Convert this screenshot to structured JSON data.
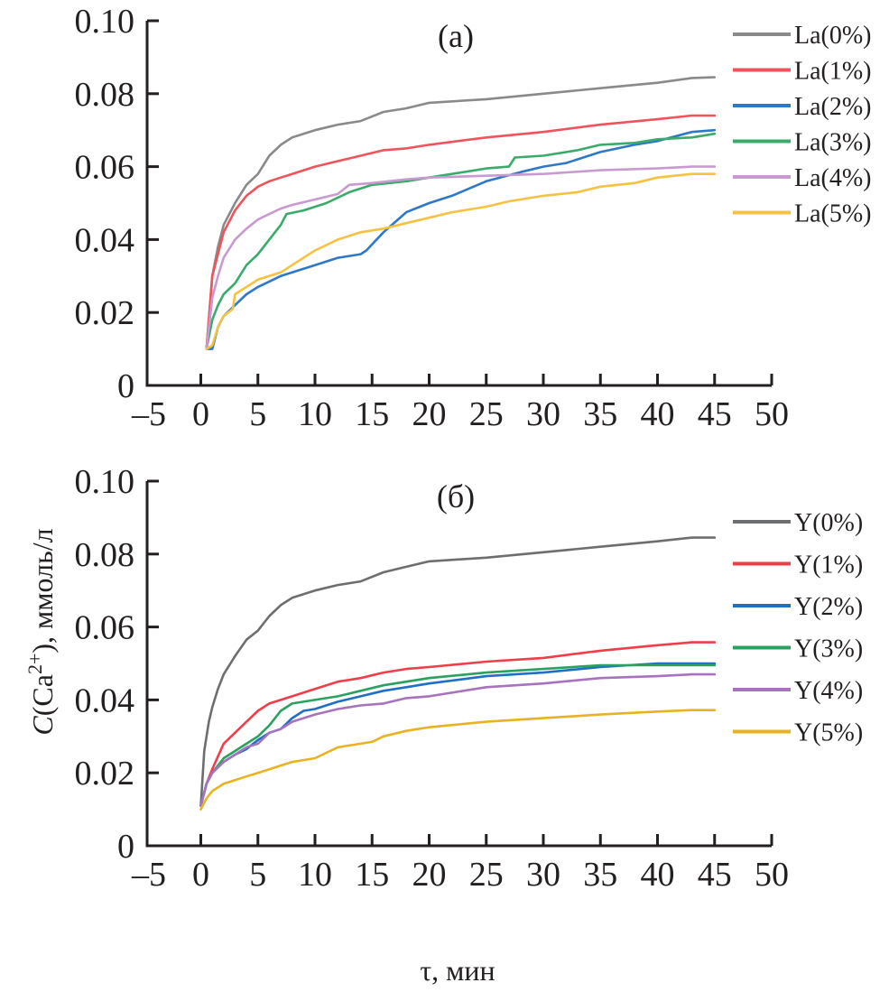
{
  "chart_data": [
    {
      "type": "line",
      "panel_label": "(a)",
      "title": "",
      "xlabel": "τ, мин",
      "ylabel": "C(Ca2+), ммоль/л",
      "xlim": [
        -5,
        50
      ],
      "ylim": [
        0,
        0.1
      ],
      "xticks": [
        -5,
        0,
        5,
        10,
        15,
        20,
        25,
        30,
        35,
        40,
        45,
        50
      ],
      "xtick_labels": [
        "–5",
        "0",
        "5",
        "10",
        "15",
        "20",
        "25",
        "30",
        "35",
        "40",
        "45",
        "50"
      ],
      "yticks": [
        0,
        0.02,
        0.04,
        0.06,
        0.08,
        0.1
      ],
      "ytick_labels": [
        "0",
        "0.02",
        "0.04",
        "0.06",
        "0.08",
        "0.10"
      ],
      "grid": false,
      "legend_position": "right",
      "series": [
        {
          "name": "La(0%)",
          "color": "#8a8a8a",
          "x": [
            0.5,
            1,
            1.5,
            2,
            3,
            4,
            5,
            6,
            7,
            8,
            10,
            12,
            14,
            16,
            18,
            20,
            25,
            30,
            35,
            40,
            43,
            45
          ],
          "y": [
            0.01,
            0.03,
            0.038,
            0.044,
            0.05,
            0.055,
            0.058,
            0.063,
            0.066,
            0.068,
            0.07,
            0.0715,
            0.0725,
            0.075,
            0.076,
            0.0775,
            0.0785,
            0.08,
            0.0815,
            0.083,
            0.0843,
            0.0845
          ]
        },
        {
          "name": "La(1%)",
          "color": "#f0535b",
          "x": [
            0.5,
            1,
            1.5,
            2,
            3,
            4,
            5,
            6,
            7,
            8,
            10,
            12,
            14,
            16,
            18,
            20,
            25,
            30,
            35,
            40,
            43,
            45
          ],
          "y": [
            0.01,
            0.03,
            0.036,
            0.042,
            0.048,
            0.052,
            0.0545,
            0.056,
            0.057,
            0.058,
            0.06,
            0.0615,
            0.063,
            0.0645,
            0.065,
            0.066,
            0.068,
            0.0695,
            0.0715,
            0.073,
            0.074,
            0.074
          ]
        },
        {
          "name": "La(2%)",
          "color": "#2f78c8",
          "x": [
            0.5,
            1,
            1.5,
            2,
            3,
            4,
            5,
            6,
            7,
            8,
            10,
            12,
            14,
            14.5,
            16,
            18,
            20,
            22,
            25,
            28,
            30,
            32,
            35,
            38,
            40,
            43,
            45
          ],
          "y": [
            0.01,
            0.01,
            0.016,
            0.019,
            0.022,
            0.025,
            0.027,
            0.0285,
            0.03,
            0.031,
            0.033,
            0.035,
            0.036,
            0.037,
            0.042,
            0.0475,
            0.05,
            0.052,
            0.056,
            0.0585,
            0.06,
            0.061,
            0.064,
            0.066,
            0.067,
            0.0695,
            0.07
          ]
        },
        {
          "name": "La(3%)",
          "color": "#3aab6a",
          "x": [
            0.5,
            1,
            1.5,
            2,
            3,
            4,
            5,
            6,
            7,
            7.5,
            9,
            11,
            13,
            15,
            18,
            20,
            22,
            25,
            27,
            27.5,
            30,
            33,
            35,
            38,
            40,
            43,
            45
          ],
          "y": [
            0.01,
            0.018,
            0.022,
            0.025,
            0.028,
            0.033,
            0.036,
            0.04,
            0.044,
            0.047,
            0.048,
            0.05,
            0.053,
            0.055,
            0.056,
            0.057,
            0.058,
            0.0595,
            0.06,
            0.0625,
            0.063,
            0.0645,
            0.066,
            0.0665,
            0.0675,
            0.068,
            0.069
          ]
        },
        {
          "name": "La(4%)",
          "color": "#c99ad0",
          "x": [
            0.5,
            1,
            1.5,
            2,
            3,
            4,
            5,
            6,
            7,
            8,
            10,
            12,
            13,
            15,
            18,
            20,
            25,
            30,
            35,
            40,
            43,
            45
          ],
          "y": [
            0.01,
            0.024,
            0.03,
            0.035,
            0.04,
            0.043,
            0.0455,
            0.047,
            0.0485,
            0.0495,
            0.051,
            0.0525,
            0.055,
            0.0555,
            0.0565,
            0.057,
            0.0575,
            0.058,
            0.059,
            0.0595,
            0.06,
            0.06
          ]
        },
        {
          "name": "La(5%)",
          "color": "#f5c242",
          "x": [
            0.5,
            1,
            1.5,
            2,
            2.8,
            3,
            4,
            5,
            6,
            7,
            8,
            10,
            12,
            14,
            16,
            18,
            20,
            22,
            25,
            27,
            30,
            33,
            35,
            38,
            40,
            43,
            45
          ],
          "y": [
            0.01,
            0.011,
            0.016,
            0.019,
            0.021,
            0.025,
            0.027,
            0.029,
            0.03,
            0.031,
            0.033,
            0.037,
            0.04,
            0.042,
            0.043,
            0.0445,
            0.046,
            0.0475,
            0.049,
            0.0505,
            0.052,
            0.053,
            0.0545,
            0.0555,
            0.057,
            0.058,
            0.058
          ]
        }
      ]
    },
    {
      "type": "line",
      "panel_label": "(б)",
      "title": "",
      "xlabel": "τ, мин",
      "ylabel": "C(Ca2+), ммоль/л",
      "xlim": [
        -5,
        50
      ],
      "ylim": [
        0,
        0.1
      ],
      "xticks": [
        -5,
        0,
        5,
        10,
        15,
        20,
        25,
        30,
        35,
        40,
        45,
        50
      ],
      "xtick_labels": [
        "–5",
        "0",
        "5",
        "10",
        "15",
        "20",
        "25",
        "30",
        "35",
        "40",
        "45",
        "50"
      ],
      "yticks": [
        0,
        0.02,
        0.04,
        0.06,
        0.08,
        0.1
      ],
      "ytick_labels": [
        "0",
        "0.02",
        "0.04",
        "0.06",
        "0.08",
        "0.10"
      ],
      "grid": false,
      "legend_position": "right",
      "series": [
        {
          "name": "Y(0%)",
          "color": "#6d6e70",
          "x": [
            0,
            0.3,
            0.7,
            1,
            1.5,
            2,
            3,
            4,
            5,
            6,
            7,
            8,
            10,
            12,
            14,
            16,
            18,
            20,
            25,
            30,
            35,
            40,
            43,
            45
          ],
          "y": [
            0.011,
            0.026,
            0.034,
            0.038,
            0.043,
            0.047,
            0.052,
            0.0565,
            0.059,
            0.063,
            0.066,
            0.068,
            0.07,
            0.0715,
            0.0725,
            0.075,
            0.0765,
            0.078,
            0.079,
            0.0805,
            0.082,
            0.0835,
            0.0845,
            0.0845
          ]
        },
        {
          "name": "Y(1%)",
          "color": "#ef3e4a",
          "x": [
            0,
            0.5,
            1,
            2,
            3,
            4,
            5,
            6,
            7,
            8,
            10,
            12,
            14,
            16,
            18,
            20,
            25,
            30,
            35,
            40,
            43,
            45
          ],
          "y": [
            0.011,
            0.017,
            0.021,
            0.028,
            0.031,
            0.034,
            0.037,
            0.039,
            0.04,
            0.041,
            0.043,
            0.045,
            0.046,
            0.0475,
            0.0485,
            0.049,
            0.0505,
            0.0515,
            0.0535,
            0.055,
            0.0558,
            0.0558
          ]
        },
        {
          "name": "Y(2%)",
          "color": "#1f6fc7",
          "x": [
            0,
            0.5,
            1,
            2,
            3,
            4,
            5,
            6,
            7,
            8,
            9,
            10,
            12,
            14,
            16,
            18,
            20,
            25,
            30,
            35,
            40,
            43,
            45
          ],
          "y": [
            0.011,
            0.017,
            0.02,
            0.023,
            0.025,
            0.0265,
            0.029,
            0.031,
            0.032,
            0.035,
            0.037,
            0.0375,
            0.0395,
            0.041,
            0.0425,
            0.0435,
            0.0445,
            0.0465,
            0.0475,
            0.049,
            0.05,
            0.05,
            0.05
          ]
        },
        {
          "name": "Y(3%)",
          "color": "#2aa15f",
          "x": [
            0,
            0.5,
            1,
            2,
            3,
            4,
            5,
            6,
            7,
            8,
            10,
            12,
            14,
            16,
            18,
            20,
            25,
            30,
            35,
            40,
            43,
            45
          ],
          "y": [
            0.011,
            0.017,
            0.02,
            0.024,
            0.026,
            0.028,
            0.03,
            0.033,
            0.037,
            0.039,
            0.04,
            0.041,
            0.0425,
            0.044,
            0.045,
            0.046,
            0.0475,
            0.0485,
            0.0495,
            0.0495,
            0.0495,
            0.0495
          ]
        },
        {
          "name": "Y(4%)",
          "color": "#a772be",
          "x": [
            0,
            0.5,
            1,
            2,
            3,
            4,
            5,
            6,
            7,
            8,
            10,
            12,
            14,
            16,
            18,
            20,
            25,
            30,
            35,
            40,
            43,
            45
          ],
          "y": [
            0.011,
            0.017,
            0.02,
            0.023,
            0.025,
            0.027,
            0.028,
            0.031,
            0.032,
            0.034,
            0.036,
            0.0375,
            0.0385,
            0.039,
            0.0405,
            0.041,
            0.0435,
            0.0445,
            0.046,
            0.0465,
            0.047,
            0.047
          ]
        },
        {
          "name": "Y(5%)",
          "color": "#e8b320",
          "x": [
            0,
            0.5,
            1,
            2,
            3,
            4,
            5,
            6,
            7,
            8,
            10,
            12,
            14,
            15,
            16,
            18,
            20,
            25,
            30,
            35,
            40,
            43,
            45
          ],
          "y": [
            0.01,
            0.013,
            0.015,
            0.017,
            0.018,
            0.019,
            0.02,
            0.021,
            0.022,
            0.023,
            0.024,
            0.027,
            0.028,
            0.0285,
            0.03,
            0.0315,
            0.0325,
            0.034,
            0.035,
            0.036,
            0.0368,
            0.0372,
            0.0372
          ]
        }
      ]
    }
  ],
  "shared_ylabel": {
    "prefix_italic": "C",
    "open": "(Ca",
    "superscript": "2+",
    "close": "), ммоль/л"
  },
  "shared_xlabel": "τ, мин"
}
